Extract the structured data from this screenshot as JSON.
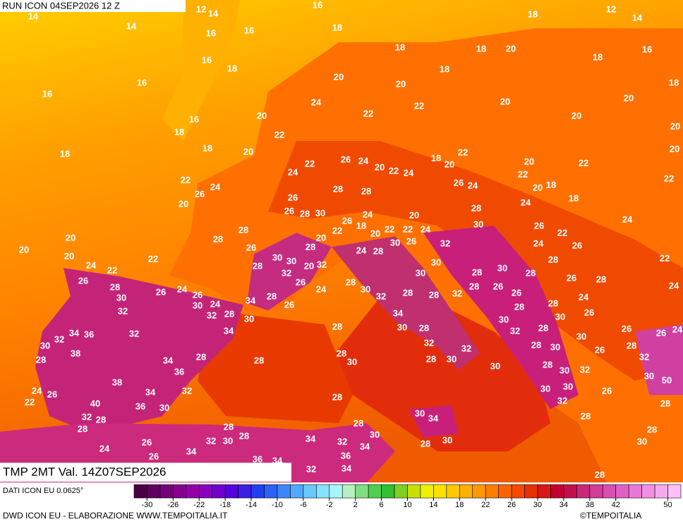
{
  "header": {
    "run": "RUN ICON 04SEP2026 12 Z",
    "field": "TMP 2MT Val. 14Z07SEP2026"
  },
  "footer": {
    "model": "DATI ICON EU 0.0625°",
    "credit": "DWD ICON EU - ELABORAZIONE WWW.TEMPOITALIA.IT",
    "brand": "©TEMPOITALIA"
  },
  "colorbar": {
    "range": [
      -32,
      52
    ],
    "colors": [
      "#4b0046",
      "#5e0060",
      "#730078",
      "#86008f",
      "#9400a8",
      "#8a00c0",
      "#7000d0",
      "#5500dc",
      "#3a1ee6",
      "#2040f0",
      "#2a62f5",
      "#3c86f8",
      "#52a8fb",
      "#6ac8fd",
      "#86e2fe",
      "#a8f4ff",
      "#b8f0c0",
      "#80e080",
      "#50d050",
      "#30c030",
      "#80d020",
      "#c8e000",
      "#f0f000",
      "#ffe000",
      "#ffc800",
      "#ffb000",
      "#ff9800",
      "#ff7e00",
      "#ff6400",
      "#f84800",
      "#e83000",
      "#d81818",
      "#c40030",
      "#c0104c",
      "#c82878",
      "#d03c98",
      "#d850b0",
      "#e060c8",
      "#e878d8",
      "#f090e4",
      "#f8a8ee",
      "#ffc0f8"
    ],
    "ticks": [
      -30,
      -26,
      -22,
      -18,
      -14,
      -10,
      -6,
      -2,
      2,
      6,
      10,
      14,
      18,
      22,
      26,
      30,
      34,
      38,
      42,
      50
    ]
  },
  "map": {
    "temperature_labels": [
      12,
      14,
      16,
      14,
      14,
      16,
      16,
      18,
      18,
      18,
      20,
      18,
      12,
      14,
      16,
      18,
      18,
      18,
      20,
      20,
      16,
      18,
      16,
      16,
      24,
      22,
      22,
      20,
      20,
      20,
      20,
      20,
      16,
      18,
      18,
      18,
      20,
      22,
      20,
      22,
      18,
      20,
      20,
      22,
      22,
      22,
      26,
      24,
      20,
      22,
      24,
      24,
      22,
      22,
      24,
      26,
      26,
      24,
      20,
      18,
      18,
      28,
      28,
      26,
      20,
      26,
      28,
      30,
      24,
      20,
      28,
      24,
      24,
      20,
      20,
      20,
      22,
      28,
      28,
      26,
      30,
      30,
      28,
      20,
      22,
      26,
      18,
      20,
      22,
      22,
      24,
      30,
      26,
      22,
      24,
      26,
      22,
      24,
      22,
      28,
      32,
      20,
      32,
      24,
      28,
      30,
      26,
      32,
      30,
      30,
      28,
      30,
      28,
      28,
      26,
      28,
      30,
      26,
      24,
      26,
      30,
      24,
      26,
      24,
      28,
      30,
      32,
      28,
      28,
      32,
      28,
      26,
      26,
      26,
      28,
      24,
      24,
      32,
      32,
      28,
      30,
      34,
      28,
      26,
      34,
      28,
      28,
      30,
      26,
      34,
      36,
      32,
      34,
      28,
      30,
      28,
      30,
      32,
      28,
      30,
      26,
      26,
      24,
      30,
      32,
      38,
      34,
      28,
      28,
      28,
      30,
      32,
      32,
      28,
      30,
      26,
      28,
      28,
      36,
      38,
      28,
      30,
      30,
      28,
      30,
      32,
      32,
      30,
      50,
      24,
      26,
      34,
      32,
      28,
      30,
      30,
      26,
      22,
      40,
      36,
      30,
      32,
      28,
      32,
      28,
      28,
      30,
      34,
      28,
      28,
      28,
      28,
      24,
      26,
      32,
      30,
      34,
      32,
      30,
      34,
      28,
      30,
      28,
      30,
      26,
      34,
      36,
      36,
      34,
      34,
      32,
      28
    ]
  }
}
